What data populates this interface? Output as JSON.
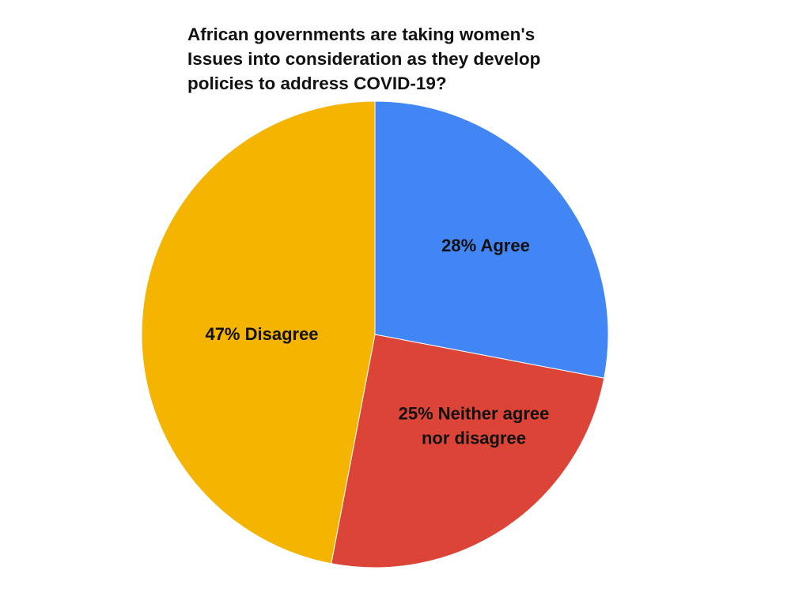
{
  "chart_data": {
    "type": "pie",
    "title": "African governments are taking women's\nIssues into consideration as they develop\npolicies to address COVID-19?",
    "slices": [
      {
        "category": "Agree",
        "value": 28,
        "label_lines": [
          "28% Agree"
        ],
        "color": "#4285f4"
      },
      {
        "category": "Neither agree nor disagree",
        "value": 25,
        "label_lines": [
          "25% Neither agree",
          "nor disagree"
        ],
        "color": "#db4437"
      },
      {
        "category": "Disagree",
        "value": 47,
        "label_lines": [
          "47% Disagree"
        ],
        "color": "#f4b400"
      }
    ],
    "start_angle": "12 o'clock",
    "direction": "clockwise",
    "legend": "none"
  }
}
